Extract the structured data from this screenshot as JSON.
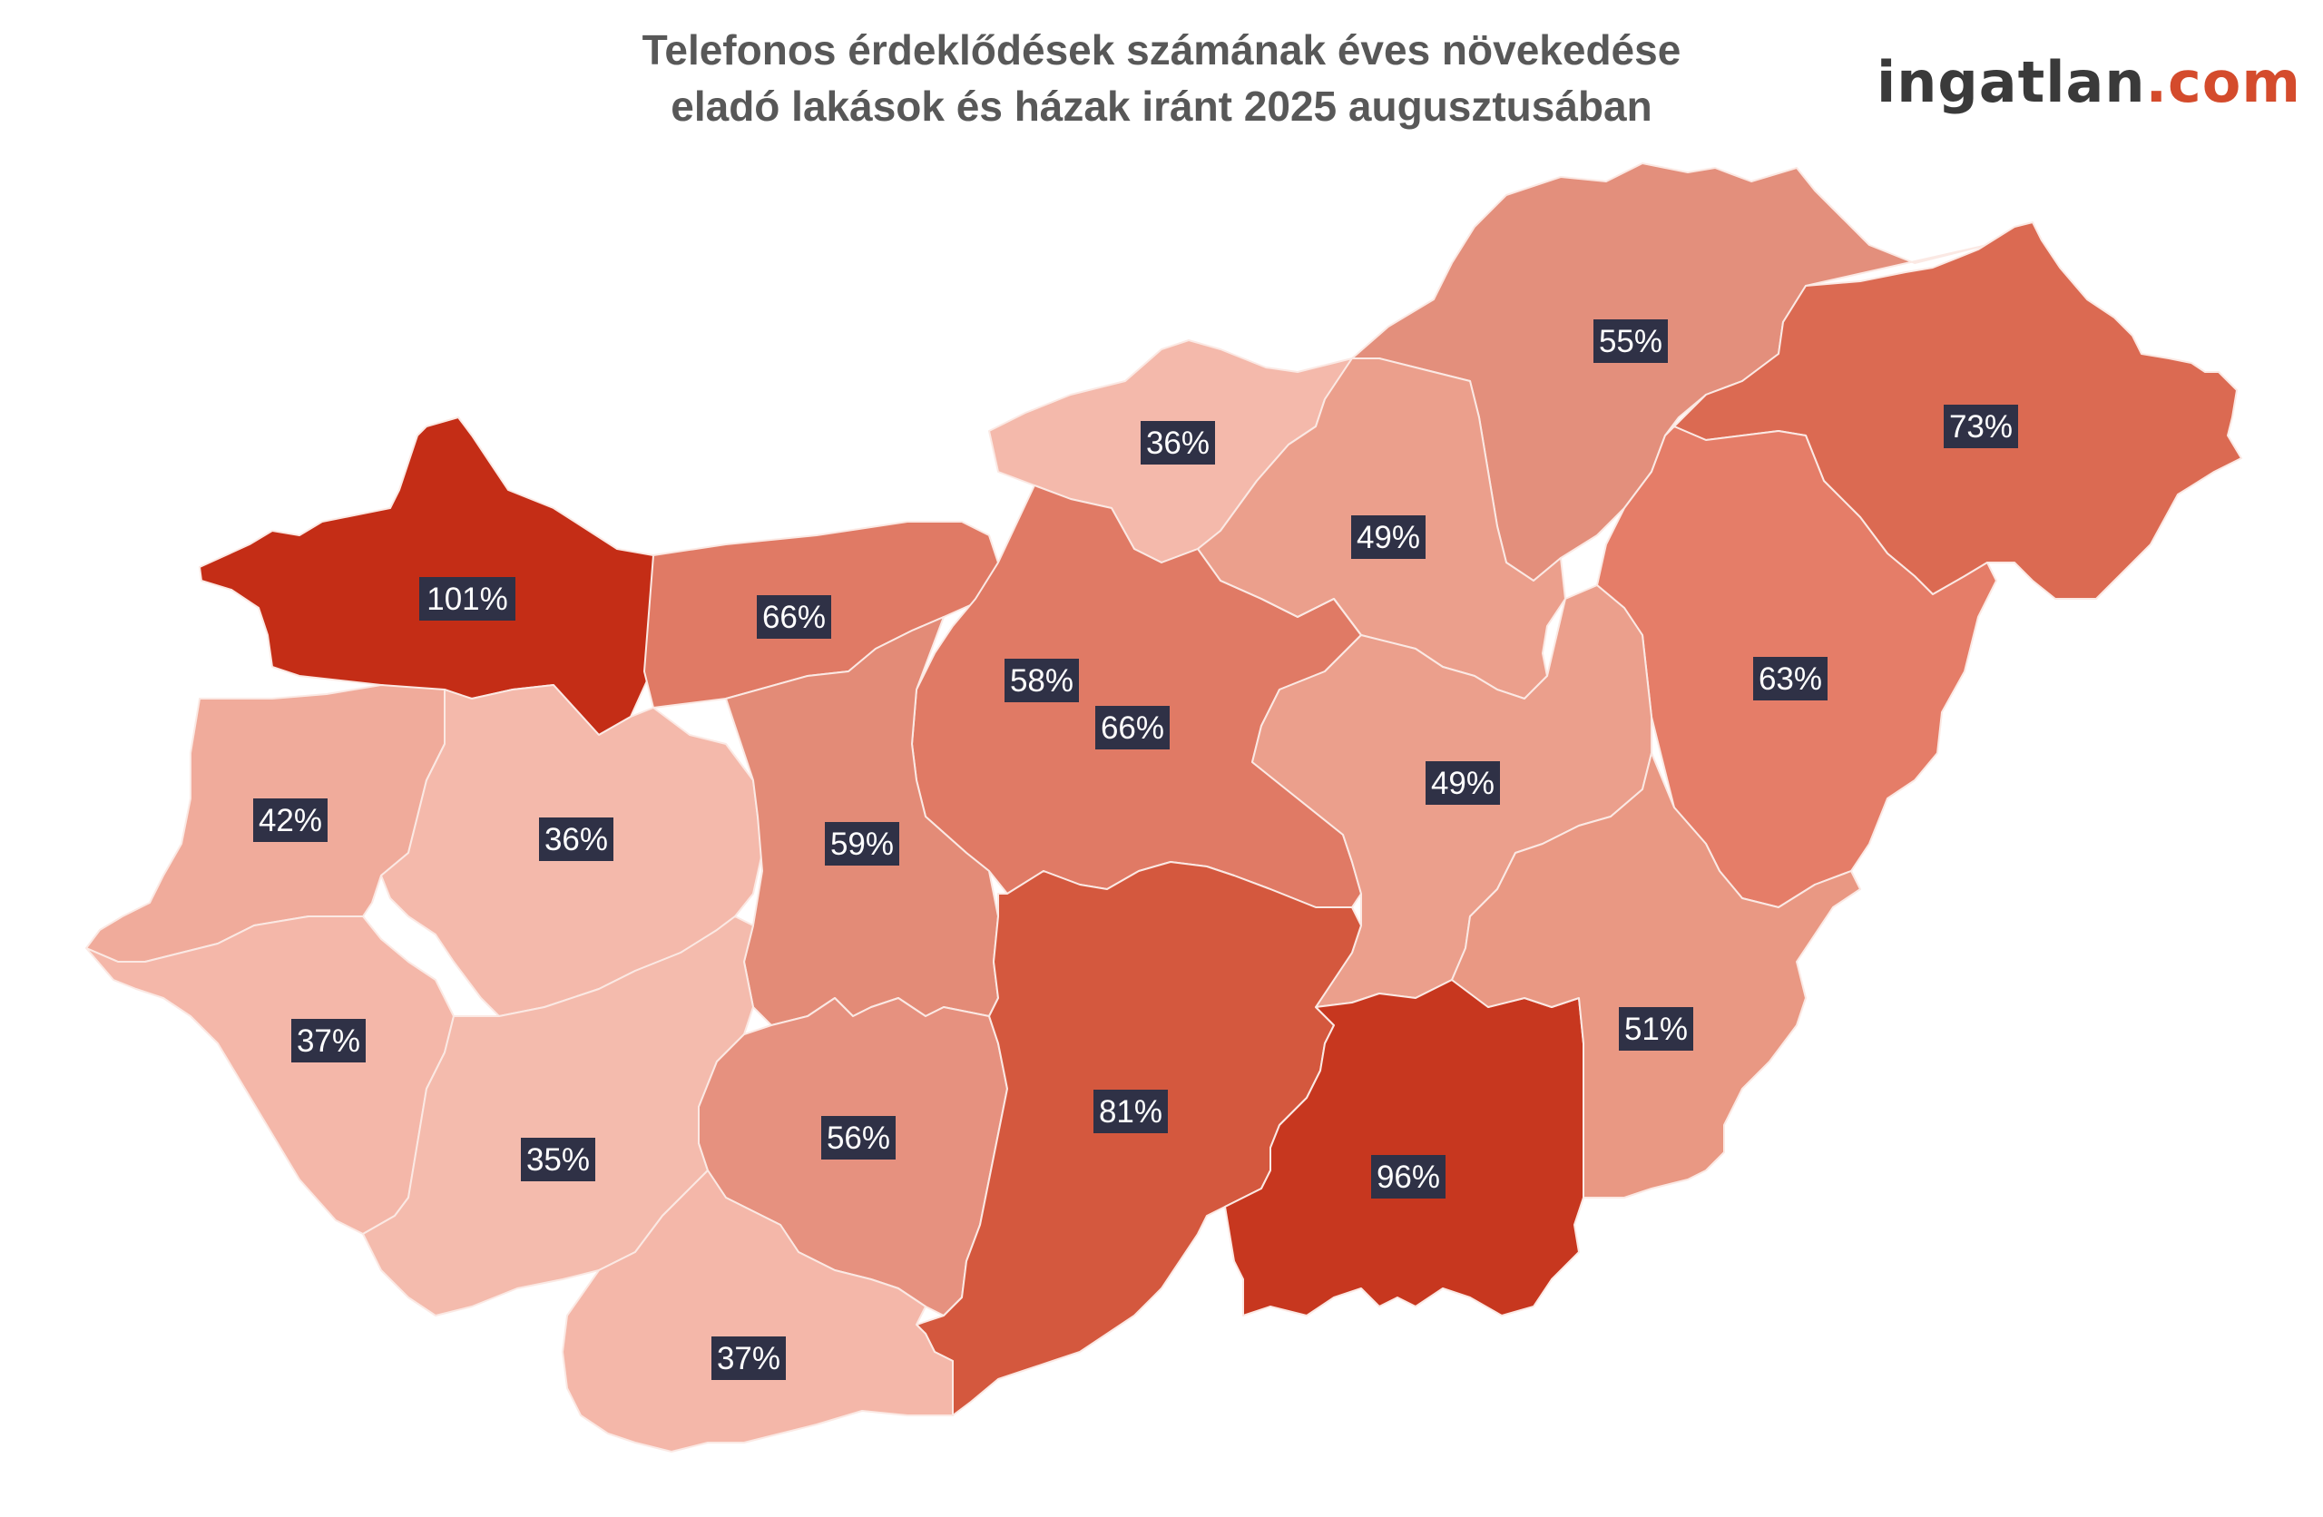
{
  "title": {
    "line1": "Telefonos érdeklődések számának éves növekedése",
    "line2": "eladó lakások és házak iránt 2025 augusztusában"
  },
  "logo": {
    "brand": "ingatlan",
    "dot": ".",
    "tld": "com"
  },
  "colors": {
    "highest": "#c42d16",
    "high": "#d4583e",
    "mid_high": "#db6f55",
    "mid": "#e08c78",
    "low_mid": "#eda08e",
    "lowest": "#f4b9ab"
  },
  "regions": [
    {
      "id": "nw",
      "value": "101%",
      "color": "#c42d16"
    },
    {
      "id": "n-west",
      "value": "66%",
      "color": "#e07a65"
    },
    {
      "id": "north-small",
      "value": "36%",
      "color": "#f4b9ab"
    },
    {
      "id": "ne-north",
      "value": "55%",
      "color": "#e38f7c"
    },
    {
      "id": "ne-east",
      "value": "73%",
      "color": "#db6a52"
    },
    {
      "id": "n-center",
      "value": "49%",
      "color": "#eb9f8c"
    },
    {
      "id": "e-center",
      "value": "63%",
      "color": "#e57d68"
    },
    {
      "id": "capital",
      "value": "58%",
      "color": "#e6917f"
    },
    {
      "id": "central",
      "value": "66%",
      "color": "#e07a65"
    },
    {
      "id": "center-east",
      "value": "49%",
      "color": "#eb9f8c"
    },
    {
      "id": "w-north",
      "value": "42%",
      "color": "#f0ab9b"
    },
    {
      "id": "w-center",
      "value": "36%",
      "color": "#f4b9ab"
    },
    {
      "id": "center-west",
      "value": "59%",
      "color": "#e38b77"
    },
    {
      "id": "sw-1",
      "value": "37%",
      "color": "#f4b7a9"
    },
    {
      "id": "sw-2",
      "value": "35%",
      "color": "#f4bbad"
    },
    {
      "id": "s-center",
      "value": "56%",
      "color": "#e6917f"
    },
    {
      "id": "s-main",
      "value": "81%",
      "color": "#d4583e"
    },
    {
      "id": "se",
      "value": "96%",
      "color": "#c7371f"
    },
    {
      "id": "e-south",
      "value": "51%",
      "color": "#e99883"
    },
    {
      "id": "sw-bottom",
      "value": "37%",
      "color": "#f4b7a9"
    }
  ]
}
